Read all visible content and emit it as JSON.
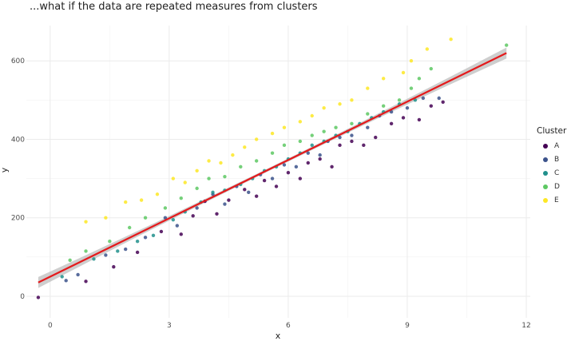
{
  "title": "...what if the data are repeated measures from clusters",
  "chart_data": {
    "type": "scatter",
    "title": "...what if the data are repeated measures from clusters",
    "xlabel": "x",
    "ylabel": "y",
    "xlim": [
      -0.6,
      12.1
    ],
    "ylim": [
      -55,
      690
    ],
    "x_ticks": [
      0,
      3,
      6,
      9,
      12
    ],
    "y_ticks": [
      0,
      200,
      400,
      600
    ],
    "grid": true,
    "legend": {
      "title": "Cluster",
      "position": "right"
    },
    "colors": {
      "A": "#440154",
      "B": "#3b528b",
      "C": "#21908c",
      "D": "#5dc863",
      "E": "#fde725",
      "fit_line": "#e41a1c",
      "ribbon": "#bdbdbd"
    },
    "fit_line": {
      "x": [
        -0.3,
        11.5
      ],
      "y": [
        35,
        620
      ]
    },
    "series": [
      {
        "name": "A",
        "color": "#440154",
        "points": [
          [
            -0.3,
            -3
          ],
          [
            0.9,
            38
          ],
          [
            1.6,
            75
          ],
          [
            2.2,
            112
          ],
          [
            2.8,
            165
          ],
          [
            3.3,
            158
          ],
          [
            3.6,
            205
          ],
          [
            3.9,
            242
          ],
          [
            4.2,
            210
          ],
          [
            4.5,
            245
          ],
          [
            4.9,
            272
          ],
          [
            5.2,
            255
          ],
          [
            5.4,
            295
          ],
          [
            5.7,
            280
          ],
          [
            6.0,
            315
          ],
          [
            6.3,
            300
          ],
          [
            6.5,
            340
          ],
          [
            6.8,
            350
          ],
          [
            7.1,
            330
          ],
          [
            7.3,
            385
          ],
          [
            7.6,
            395
          ],
          [
            7.9,
            385
          ],
          [
            8.2,
            405
          ],
          [
            8.6,
            440
          ],
          [
            8.9,
            455
          ],
          [
            9.3,
            450
          ],
          [
            9.6,
            485
          ],
          [
            9.9,
            495
          ]
        ]
      },
      {
        "name": "B",
        "color": "#3b528b",
        "points": [
          [
            0.4,
            40
          ],
          [
            0.7,
            55
          ],
          [
            1.4,
            105
          ],
          [
            1.9,
            120
          ],
          [
            2.4,
            150
          ],
          [
            2.9,
            200
          ],
          [
            3.2,
            180
          ],
          [
            3.7,
            225
          ],
          [
            4.1,
            260
          ],
          [
            4.4,
            235
          ],
          [
            4.7,
            280
          ],
          [
            5.0,
            265
          ],
          [
            5.3,
            310
          ],
          [
            5.6,
            300
          ],
          [
            5.9,
            335
          ],
          [
            6.2,
            330
          ],
          [
            6.5,
            365
          ],
          [
            6.8,
            360
          ],
          [
            7.0,
            395
          ],
          [
            7.3,
            405
          ],
          [
            7.6,
            410
          ],
          [
            8.0,
            430
          ],
          [
            8.3,
            460
          ],
          [
            8.6,
            470
          ],
          [
            9.0,
            480
          ],
          [
            9.4,
            505
          ],
          [
            9.8,
            505
          ]
        ]
      },
      {
        "name": "C",
        "color": "#21908c",
        "points": [
          [
            0.3,
            50
          ],
          [
            1.1,
            95
          ],
          [
            1.7,
            115
          ],
          [
            2.2,
            140
          ],
          [
            2.6,
            155
          ],
          [
            3.1,
            195
          ],
          [
            3.4,
            215
          ],
          [
            3.8,
            240
          ],
          [
            4.1,
            265
          ],
          [
            4.4,
            270
          ],
          [
            4.8,
            285
          ],
          [
            5.1,
            300
          ],
          [
            5.4,
            320
          ],
          [
            5.7,
            330
          ],
          [
            6.0,
            350
          ],
          [
            6.3,
            365
          ],
          [
            6.6,
            385
          ],
          [
            6.9,
            395
          ],
          [
            7.2,
            410
          ],
          [
            7.5,
            420
          ],
          [
            7.8,
            440
          ],
          [
            8.1,
            455
          ],
          [
            8.4,
            470
          ],
          [
            8.8,
            490
          ],
          [
            9.2,
            500
          ]
        ]
      },
      {
        "name": "D",
        "color": "#5dc863",
        "points": [
          [
            0.5,
            92
          ],
          [
            0.9,
            115
          ],
          [
            1.5,
            140
          ],
          [
            2.0,
            175
          ],
          [
            2.4,
            200
          ],
          [
            2.9,
            225
          ],
          [
            3.3,
            250
          ],
          [
            3.7,
            275
          ],
          [
            4.0,
            300
          ],
          [
            4.4,
            305
          ],
          [
            4.8,
            330
          ],
          [
            5.2,
            345
          ],
          [
            5.6,
            365
          ],
          [
            5.9,
            385
          ],
          [
            6.3,
            395
          ],
          [
            6.6,
            410
          ],
          [
            6.9,
            420
          ],
          [
            7.2,
            430
          ],
          [
            7.6,
            440
          ],
          [
            8.0,
            465
          ],
          [
            8.4,
            485
          ],
          [
            8.8,
            500
          ],
          [
            9.1,
            530
          ],
          [
            9.3,
            555
          ],
          [
            9.6,
            580
          ],
          [
            11.5,
            640
          ]
        ]
      },
      {
        "name": "E",
        "color": "#fde725",
        "points": [
          [
            0.9,
            190
          ],
          [
            1.4,
            200
          ],
          [
            1.9,
            240
          ],
          [
            2.3,
            245
          ],
          [
            2.7,
            260
          ],
          [
            3.1,
            300
          ],
          [
            3.4,
            290
          ],
          [
            3.7,
            320
          ],
          [
            4.0,
            345
          ],
          [
            4.3,
            340
          ],
          [
            4.6,
            360
          ],
          [
            4.9,
            380
          ],
          [
            5.2,
            400
          ],
          [
            5.6,
            415
          ],
          [
            5.9,
            430
          ],
          [
            6.3,
            445
          ],
          [
            6.6,
            460
          ],
          [
            6.9,
            480
          ],
          [
            7.3,
            490
          ],
          [
            7.6,
            500
          ],
          [
            8.0,
            530
          ],
          [
            8.4,
            555
          ],
          [
            8.9,
            570
          ],
          [
            9.1,
            600
          ],
          [
            9.5,
            630
          ],
          [
            10.1,
            655
          ]
        ]
      }
    ]
  }
}
